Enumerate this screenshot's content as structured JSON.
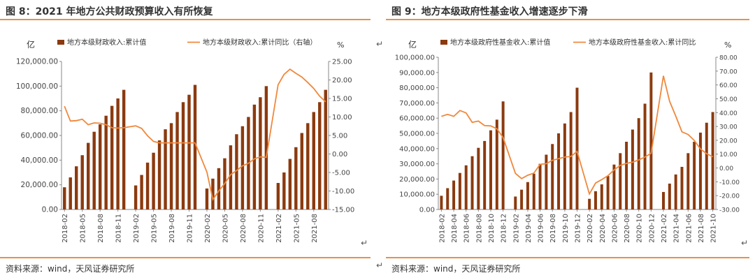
{
  "left": {
    "title": "图 8：2021 年地方公共财政预算收入有所恢复",
    "source": "资料来源：wind，天风证券研究所",
    "chart_data": {
      "type": "bar+line",
      "left_unit": "亿",
      "right_unit": "%",
      "legend": [
        "地方本级财政收入:累计值",
        "地方本级财政收入:累计同比（右轴）"
      ],
      "y_left_ticks": [
        "0.00",
        "20,000.00",
        "40,000.00",
        "60,000.00",
        "80,000.00",
        "100,000.00",
        "120,000.00"
      ],
      "y_left_range": [
        0,
        120000
      ],
      "y_right_ticks": [
        "-15.00",
        "-10.00",
        "-5.00",
        "0.00",
        "5.00",
        "10.00",
        "15.00",
        "20.00",
        "25.00"
      ],
      "y_right_range": [
        -15,
        25
      ],
      "x_labels": [
        "2018-02",
        "2018-05",
        "2018-08",
        "2018-11",
        "2019-02",
        "2019-05",
        "2019-08",
        "2019-11",
        "2020-02",
        "2020-05",
        "2020-08",
        "2020-11",
        "2021-02",
        "2021-05",
        "2021-08"
      ],
      "bars": [
        18000,
        26000,
        35000,
        44000,
        54000,
        63000,
        69000,
        76000,
        84000,
        90000,
        97000,
        null,
        19500,
        28000,
        38000,
        46000,
        56000,
        65000,
        70000,
        79000,
        87000,
        93000,
        101000,
        null,
        17000,
        25000,
        33500,
        41500,
        52000,
        61000,
        67500,
        75000,
        85000,
        91000,
        100000,
        null,
        21500,
        30000,
        41000,
        50500,
        62000,
        70000,
        79000,
        87000,
        97000
      ],
      "line": [
        12.9,
        8.9,
        9.0,
        9.4,
        7.9,
        8.4,
        8.3,
        7.9,
        7.1,
        7.0,
        7.1,
        null,
        7.6,
        6.9,
        4.9,
        3.4,
        3.0,
        3.0,
        3.0,
        3.0,
        3.0,
        3.0,
        3.0,
        null,
        -4.9,
        -12.3,
        -10.0,
        -8.0,
        -5.6,
        -4.5,
        -3.2,
        -2.5,
        -1.3,
        -0.8,
        -0.9,
        null,
        18.7,
        21.5,
        22.9,
        21.8,
        20.8,
        19.3,
        17.7,
        15.6,
        14.1
      ]
    }
  },
  "right": {
    "title": "图 9：地方本级政府性基金收入增速逐步下滑",
    "source": "资料来源：wind，天风证券研究所",
    "chart_data": {
      "type": "bar+line",
      "left_unit": "亿",
      "right_unit": "%",
      "legend": [
        "地方本级政府性基金收入:累计值",
        "地方本级政府性基金收入:累计同比"
      ],
      "y_left_ticks": [
        "0.00",
        "10,000.00",
        "20,000.00",
        "30,000.00",
        "40,000.00",
        "50,000.00",
        "60,000.00",
        "70,000.00",
        "80,000.00",
        "90,000.00",
        "100,000.00"
      ],
      "y_left_range": [
        0,
        100000
      ],
      "y_right_ticks": [
        "-30.00",
        "-20.00",
        "-10.00",
        "0.00",
        "10.00",
        "20.00",
        "30.00",
        "40.00",
        "50.00",
        "60.00",
        "70.00",
        "80.00"
      ],
      "y_right_range": [
        -30,
        80
      ],
      "x_labels": [
        "2018-02",
        "2018-04",
        "2018-06",
        "2018-08",
        "2018-10",
        "2018-12",
        "2019-02",
        "2019-04",
        "2019-06",
        "2019-08",
        "2019-10",
        "2019-12",
        "2020-02",
        "2020-04",
        "2020-06",
        "2020-08",
        "2020-10",
        "2020-12",
        "2021-02",
        "2021-04",
        "2021-06",
        "2021-08",
        "2021-10"
      ],
      "bars": [
        9000,
        14000,
        19000,
        24000,
        29000,
        35000,
        40500,
        45000,
        52000,
        59000,
        71000,
        null,
        8500,
        13000,
        18000,
        23500,
        30000,
        36000,
        43000,
        50000,
        56500,
        64000,
        80000,
        null,
        7000,
        12000,
        16500,
        22000,
        29500,
        37000,
        44500,
        52500,
        60000,
        69500,
        90000,
        null,
        11500,
        17000,
        23000,
        28000,
        37000,
        44500,
        50500,
        57000,
        64000
      ],
      "line": [
        37.3,
        38.7,
        37.3,
        41.5,
        39.8,
        32.9,
        33.9,
        30.6,
        30.4,
        28.3,
        22.0,
        null,
        -3.9,
        -7.7,
        -5.3,
        -3.7,
        2.6,
        3.1,
        5.5,
        6.7,
        7.9,
        8.3,
        12.0,
        null,
        -18.8,
        -10.9,
        -8.4,
        -5.6,
        -1.4,
        1.9,
        3.3,
        4.2,
        5.8,
        7.9,
        10.6,
        null,
        66.6,
        48.2,
        37.4,
        26.1,
        24.2,
        19.9,
        13.8,
        10.3,
        8.1
      ]
    }
  }
}
